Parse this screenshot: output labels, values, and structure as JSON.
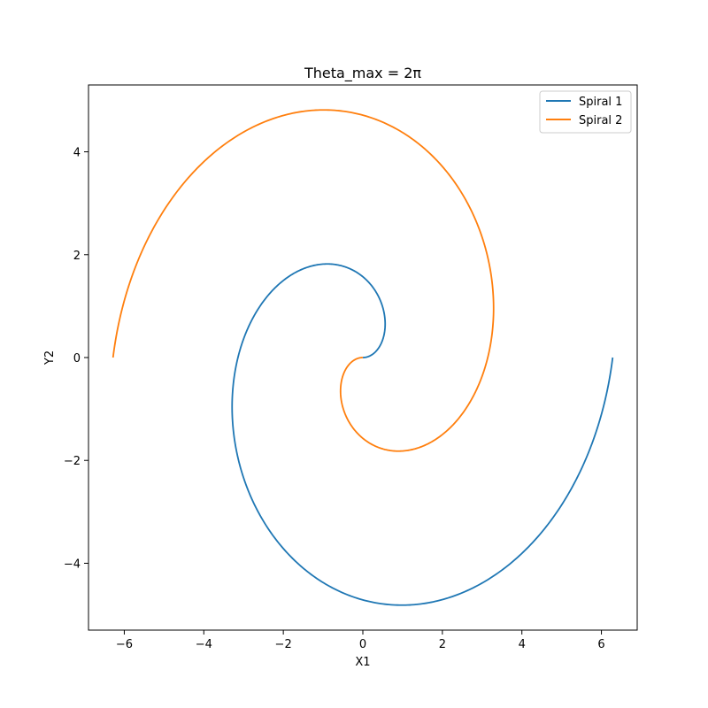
{
  "chart_data": {
    "type": "line",
    "title": "Theta_max = 2π",
    "xlabel": "X1",
    "ylabel": "Y2",
    "xlim": [
      -6.9,
      6.9
    ],
    "ylim": [
      -5.3,
      5.3
    ],
    "xticks": [
      -6,
      -4,
      -2,
      0,
      2,
      4,
      6
    ],
    "xtick_labels": [
      "−6",
      "−4",
      "−2",
      "0",
      "2",
      "4",
      "6"
    ],
    "yticks": [
      -4,
      -2,
      0,
      2,
      4
    ],
    "ytick_labels": [
      "−4",
      "−2",
      "0",
      "2",
      "4"
    ],
    "grid": false,
    "legend_position": "top-right",
    "theta_max": 6.283185307,
    "series": [
      {
        "name": "Spiral 1",
        "color": "#1f77b4",
        "equation": "x = t·cos(t), y = t·sin(t), t ∈ [0, 2π]"
      },
      {
        "name": "Spiral 2",
        "color": "#ff7f0e",
        "equation": "x = −t·cos(t), y = −t·sin(t), t ∈ [0, 2π]"
      }
    ]
  }
}
